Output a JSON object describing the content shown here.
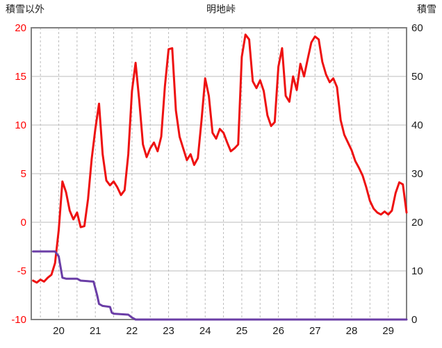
{
  "header": {
    "left_label": "積雪以外",
    "title": "明地峠",
    "right_label": "積雪"
  },
  "chart_data": {
    "type": "line",
    "title": "明地峠",
    "left_axis_label": "積雪以外",
    "right_axis_label": "積雪",
    "x_range": [
      19.25,
      29.5
    ],
    "x_ticks": [
      20,
      21,
      22,
      23,
      24,
      25,
      26,
      27,
      28,
      29
    ],
    "left_ylim": [
      -10,
      20
    ],
    "left_yticks": [
      -10,
      -5,
      0,
      5,
      10,
      15,
      20
    ],
    "right_ylim": [
      0,
      60
    ],
    "right_yticks": [
      0,
      10,
      20,
      30,
      40,
      50,
      60
    ],
    "grid": {
      "horizontal": "solid",
      "vertical": "dashed"
    },
    "v_grid_step": 0.5,
    "grid_color": "#bbbbbb",
    "border_color": "#808080",
    "left_tick_color": "#ff0000",
    "right_tick_color": "#1a1a1a",
    "x_tick_color": "#1a1a1a",
    "legend_position": "none",
    "series": [
      {
        "name": "積雪以外",
        "axis": "left",
        "color": "#ee1111",
        "line_width": 3,
        "x_start": 19.3,
        "x_step": 0.1,
        "y": [
          -6.0,
          -6.2,
          -5.9,
          -6.1,
          -5.7,
          -5.4,
          -4.2,
          -0.8,
          4.2,
          3.1,
          1.2,
          0.3,
          1.0,
          -0.5,
          -0.4,
          2.4,
          6.5,
          9.6,
          12.2,
          7.0,
          4.3,
          3.8,
          4.2,
          3.6,
          2.8,
          3.3,
          7.0,
          13.5,
          16.4,
          12.5,
          8.0,
          6.7,
          7.6,
          8.2,
          7.3,
          8.8,
          14.0,
          17.8,
          17.9,
          11.5,
          8.8,
          7.6,
          6.4,
          7.0,
          5.9,
          6.6,
          10.5,
          14.8,
          13.0,
          9.2,
          8.6,
          9.6,
          9.2,
          8.2,
          7.3,
          7.6,
          8.0,
          17.0,
          19.3,
          18.8,
          14.5,
          13.8,
          14.6,
          13.5,
          11.0,
          9.9,
          10.3,
          16.0,
          17.9,
          13.0,
          12.4,
          15.0,
          13.6,
          16.3,
          15.0,
          16.8,
          18.5,
          19.1,
          18.8,
          16.5,
          15.2,
          14.4,
          14.8,
          13.9,
          10.5,
          9.0,
          8.2,
          7.4,
          6.3,
          5.6,
          4.8,
          3.6,
          2.2,
          1.4,
          1.0,
          0.8,
          1.1,
          0.8,
          1.2,
          3.0,
          4.1,
          3.9,
          1.0
        ]
      },
      {
        "name": "積雪",
        "axis": "right",
        "color": "#6a3da6",
        "line_width": 3,
        "x": [
          19.3,
          19.9,
          20.0,
          20.1,
          20.2,
          20.5,
          20.6,
          20.95,
          21.05,
          21.1,
          21.2,
          21.4,
          21.45,
          21.5,
          21.9,
          22.0,
          22.1,
          23.0,
          24.0,
          25.0,
          26.0,
          27.0,
          28.0,
          29.0,
          29.5
        ],
        "y": [
          14,
          14,
          13,
          8.6,
          8.4,
          8.4,
          8.0,
          7.8,
          5.0,
          3.2,
          2.8,
          2.6,
          1.4,
          1.2,
          1.0,
          0.4,
          0,
          0,
          0,
          0,
          0,
          0,
          0,
          0,
          0
        ]
      }
    ]
  }
}
